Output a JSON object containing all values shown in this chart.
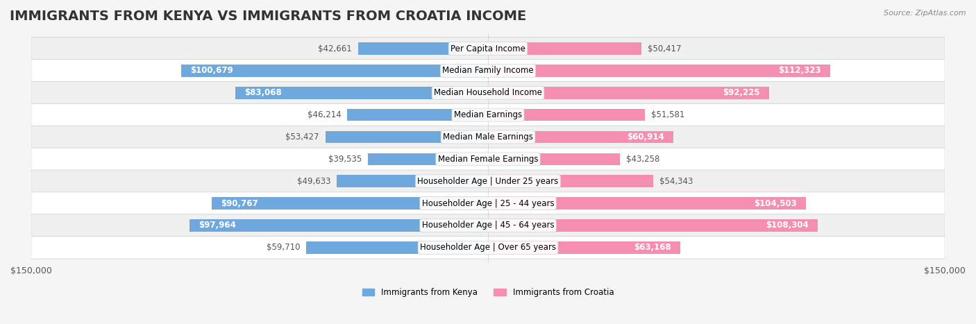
{
  "title": "IMMIGRANTS FROM KENYA VS IMMIGRANTS FROM CROATIA INCOME",
  "source": "Source: ZipAtlas.com",
  "categories": [
    "Per Capita Income",
    "Median Family Income",
    "Median Household Income",
    "Median Earnings",
    "Median Male Earnings",
    "Median Female Earnings",
    "Householder Age | Under 25 years",
    "Householder Age | 25 - 44 years",
    "Householder Age | 45 - 64 years",
    "Householder Age | Over 65 years"
  ],
  "kenya_values": [
    42661,
    100679,
    83068,
    46214,
    53427,
    39535,
    49633,
    90767,
    97964,
    59710
  ],
  "croatia_values": [
    50417,
    112323,
    92225,
    51581,
    60914,
    43258,
    54343,
    104503,
    108304,
    63168
  ],
  "kenya_labels": [
    "$42,661",
    "$100,679",
    "$83,068",
    "$46,214",
    "$53,427",
    "$39,535",
    "$49,633",
    "$90,767",
    "$97,964",
    "$59,710"
  ],
  "croatia_labels": [
    "$50,417",
    "$112,323",
    "$92,225",
    "$51,581",
    "$60,914",
    "$43,258",
    "$54,343",
    "$104,503",
    "$108,304",
    "$63,168"
  ],
  "kenya_color": "#6fa8dc",
  "kenya_color_dark": "#5b8fc8",
  "croatia_color": "#f48fb1",
  "croatia_color_dark": "#e07799",
  "max_value": 150000,
  "bar_height": 0.55,
  "background_color": "#f5f5f5",
  "row_bg_even": "#f0f0f0",
  "row_bg_odd": "#ffffff",
  "legend_kenya": "Immigrants from Kenya",
  "legend_croatia": "Immigrants from Croatia",
  "title_fontsize": 14,
  "label_fontsize": 8.5,
  "axis_label_fontsize": 9
}
